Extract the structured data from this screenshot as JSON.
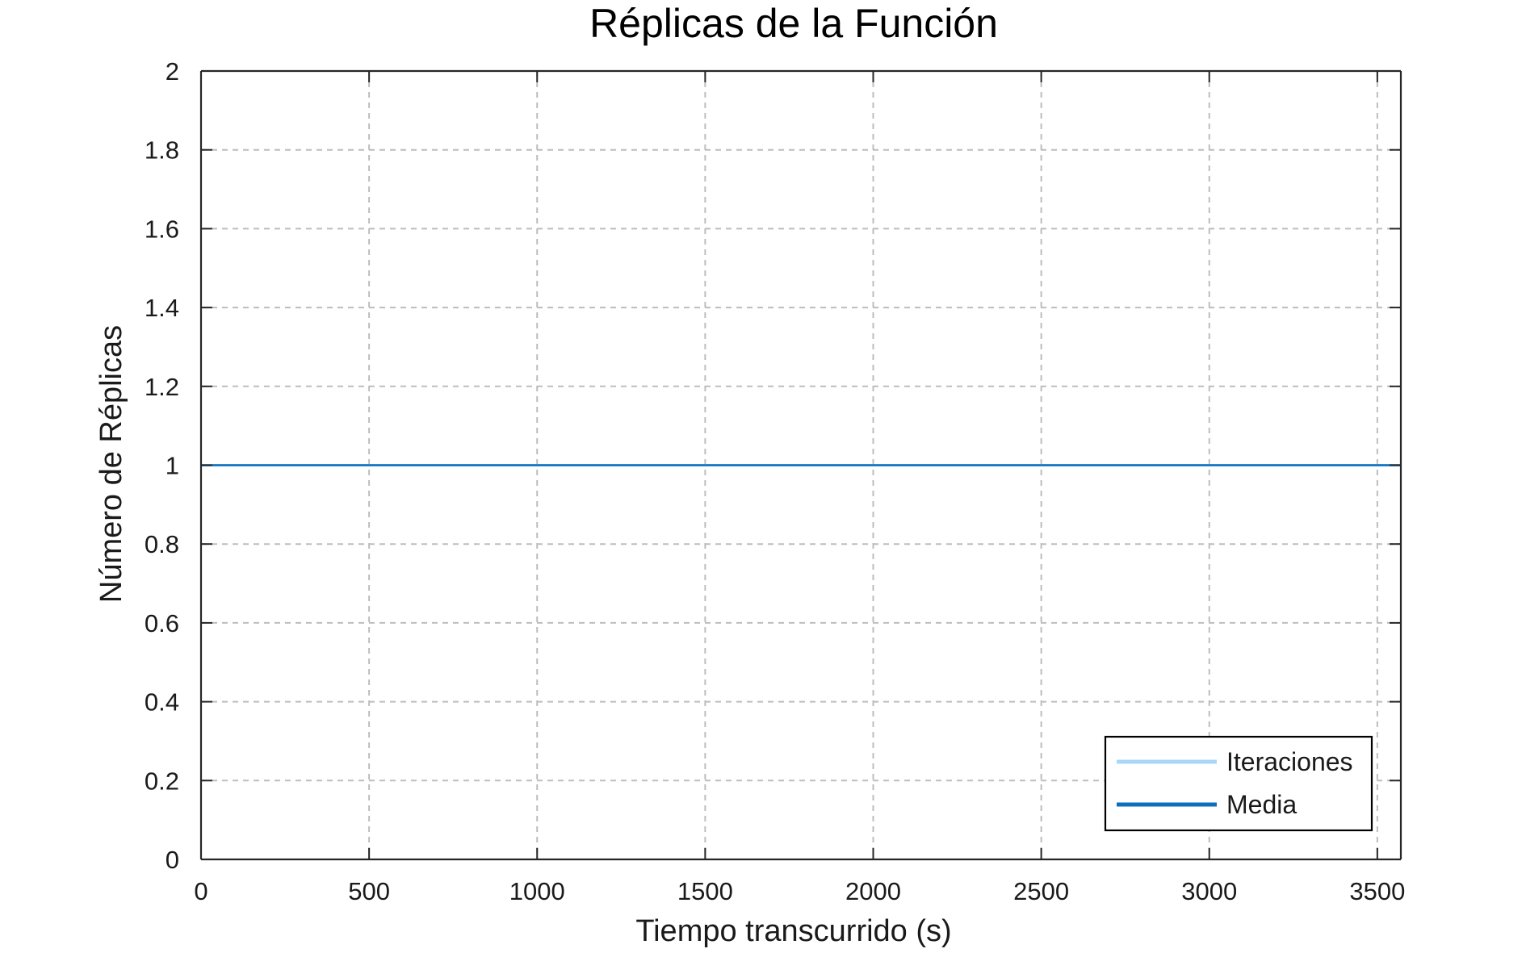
{
  "chart_data": {
    "type": "line",
    "title": "Réplicas de la Función",
    "xlabel": "Tiempo transcurrido (s)",
    "ylabel": "Número de Réplicas",
    "xlim": [
      0,
      3570
    ],
    "ylim": [
      0,
      2
    ],
    "xticks": [
      0,
      500,
      1000,
      1500,
      2000,
      2500,
      3000,
      3500
    ],
    "yticks": [
      0,
      0.2,
      0.4,
      0.6,
      0.8,
      1,
      1.2,
      1.4,
      1.6,
      1.8,
      2
    ],
    "xtick_labels": [
      "0",
      "500",
      "1000",
      "1500",
      "2000",
      "2500",
      "3000",
      "3500"
    ],
    "ytick_labels": [
      "0",
      "0.2",
      "0.4",
      "0.6",
      "0.8",
      "1",
      "1.2",
      "1.4",
      "1.6",
      "1.8",
      "2"
    ],
    "grid": true,
    "legend_position": "bottom-right",
    "series": [
      {
        "name": "Iteraciones",
        "color": "#a8d8f8",
        "x": [
          0,
          3570
        ],
        "y": [
          1,
          1
        ]
      },
      {
        "name": "Media",
        "color": "#0b6fbd",
        "x": [
          0,
          3570
        ],
        "y": [
          1,
          1
        ]
      }
    ]
  }
}
